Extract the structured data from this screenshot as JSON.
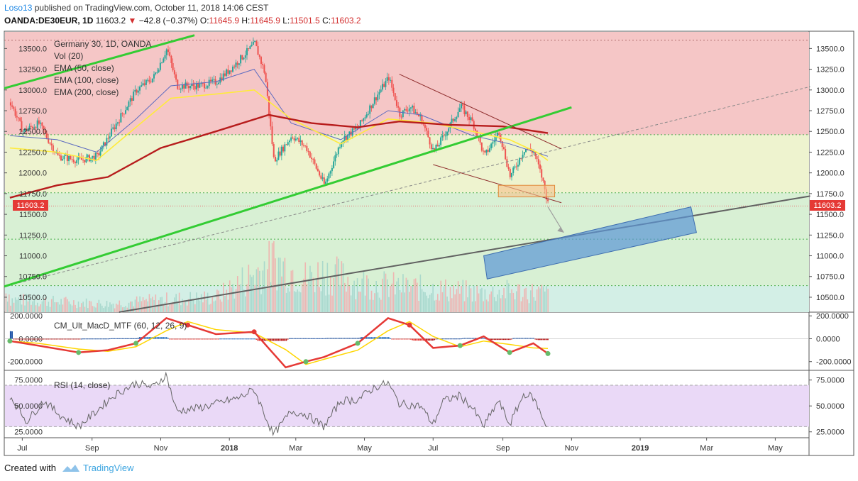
{
  "header": {
    "author": "Loso13",
    "published_text": "published on TradingView.com, October 11, 2018 14:06 CEST",
    "symbol": "OANDA:DE30EUR, 1D",
    "last": "11603.2",
    "change": "−42.8 (−0.37%)",
    "o_label": "O:",
    "o_value": "11645.9",
    "h_label": "H:",
    "h_value": "11645.9",
    "l_label": "L:",
    "l_value": "11501.5",
    "c_label": "C:",
    "c_value": "11603.2"
  },
  "legend": {
    "title": "Germany 30, 1D, OANDA",
    "vol": "Vol (20)",
    "ema50": "EMA (50, close)",
    "ema100": "EMA (100, close)",
    "ema200": "EMA (200, close)"
  },
  "macd_label": "CM_Ult_MacD_MTF (60, 12, 26, 9)",
  "rsi_label": "RSI (14, close)",
  "price_tag": "11603.2",
  "footer": {
    "created": "Created with",
    "brand": "TradingView"
  },
  "colors": {
    "up": "#26a69a",
    "down": "#ef5350",
    "ema50": "#ffeb3b",
    "ema100": "#5c6bc0",
    "ema200": "#b71c1c",
    "green_trend": "#33cc33",
    "gray_trend": "#616161",
    "zone_red": "#f5c6c6",
    "zone_yellow": "#eef3cf",
    "zone_green": "#d8f0d4",
    "zone_teal": "#d3efe6",
    "rsi_band": "#ead9f7",
    "box_blue": "#5b95d6",
    "box_orange": "#f7c18a"
  },
  "chart_data": [
    {
      "type": "candlestick",
      "title": "Germany 30, 1D, OANDA",
      "x_ticks": [
        "Jul",
        "Sep",
        "Nov",
        "2018",
        "Mar",
        "May",
        "Jul",
        "Sep",
        "Nov",
        "2019",
        "Mar",
        "May"
      ],
      "y_ticks": [
        10500,
        10750,
        11000,
        11250,
        11500,
        11750,
        12000,
        12250,
        12500,
        12750,
        13000,
        13250,
        13500
      ],
      "ylim": [
        10320,
        13700
      ],
      "x_range_months": [
        "2017-06-15",
        "2019-05-31"
      ],
      "last_price": 11603.2,
      "close_series": [
        [
          "2017-06-20",
          12850
        ],
        [
          "2017-07-01",
          12500
        ],
        [
          "2017-07-15",
          12600
        ],
        [
          "2017-08-01",
          12200
        ],
        [
          "2017-08-20",
          12150
        ],
        [
          "2017-09-05",
          12200
        ],
        [
          "2017-09-20",
          12550
        ],
        [
          "2017-10-10",
          13000
        ],
        [
          "2017-10-25",
          13150
        ],
        [
          "2017-11-06",
          13500
        ],
        [
          "2017-11-15",
          13050
        ],
        [
          "2017-11-25",
          13050
        ],
        [
          "2017-12-05",
          13050
        ],
        [
          "2017-12-20",
          13100
        ],
        [
          "2018-01-05",
          13300
        ],
        [
          "2018-01-23",
          13560
        ],
        [
          "2018-02-01",
          13200
        ],
        [
          "2018-02-09",
          12150
        ],
        [
          "2018-02-25",
          12450
        ],
        [
          "2018-03-10",
          12300
        ],
        [
          "2018-03-26",
          11850
        ],
        [
          "2018-04-10",
          12400
        ],
        [
          "2018-04-25",
          12550
        ],
        [
          "2018-05-10",
          12900
        ],
        [
          "2018-05-22",
          13150
        ],
        [
          "2018-06-01",
          12700
        ],
        [
          "2018-06-10",
          12800
        ],
        [
          "2018-06-20",
          12650
        ],
        [
          "2018-07-01",
          12250
        ],
        [
          "2018-07-10",
          12450
        ],
        [
          "2018-07-25",
          12800
        ],
        [
          "2018-08-05",
          12600
        ],
        [
          "2018-08-15",
          12200
        ],
        [
          "2018-08-28",
          12500
        ],
        [
          "2018-09-07",
          11950
        ],
        [
          "2018-09-20",
          12300
        ],
        [
          "2018-09-28",
          12250
        ],
        [
          "2018-10-05",
          11950
        ],
        [
          "2018-10-11",
          11603.2
        ]
      ],
      "ema50": [
        [
          "2017-06-20",
          12300
        ],
        [
          "2017-08-01",
          12250
        ],
        [
          "2017-09-05",
          12150
        ],
        [
          "2017-10-10",
          12550
        ],
        [
          "2017-11-10",
          12900
        ],
        [
          "2017-12-20",
          12950
        ],
        [
          "2018-01-23",
          13000
        ],
        [
          "2018-02-25",
          12650
        ],
        [
          "2018-04-10",
          12350
        ],
        [
          "2018-05-22",
          12650
        ],
        [
          "2018-07-01",
          12600
        ],
        [
          "2018-08-05",
          12500
        ],
        [
          "2018-09-07",
          12400
        ],
        [
          "2018-10-01",
          12250
        ],
        [
          "2018-10-11",
          12150
        ]
      ],
      "ema100": [
        [
          "2017-06-20",
          12450
        ],
        [
          "2017-08-01",
          12400
        ],
        [
          "2017-09-05",
          12250
        ],
        [
          "2017-10-10",
          12650
        ],
        [
          "2017-11-10",
          13050
        ],
        [
          "2017-12-20",
          13100
        ],
        [
          "2018-01-23",
          13250
        ],
        [
          "2018-02-25",
          12600
        ],
        [
          "2018-04-10",
          12400
        ],
        [
          "2018-05-22",
          12750
        ],
        [
          "2018-06-20",
          12700
        ],
        [
          "2018-08-05",
          12450
        ],
        [
          "2018-09-07",
          12350
        ],
        [
          "2018-10-11",
          12200
        ]
      ],
      "ema200": [
        [
          "2017-06-20",
          11700
        ],
        [
          "2017-08-01",
          11850
        ],
        [
          "2017-09-15",
          11950
        ],
        [
          "2017-11-01",
          12300
        ],
        [
          "2017-12-20",
          12500
        ],
        [
          "2018-02-05",
          12700
        ],
        [
          "2018-03-15",
          12600
        ],
        [
          "2018-04-25",
          12550
        ],
        [
          "2018-06-01",
          12620
        ],
        [
          "2018-07-15",
          12580
        ],
        [
          "2018-09-01",
          12560
        ],
        [
          "2018-10-11",
          12480
        ]
      ],
      "volume": {
        "ylim": [
          0,
          160
        ],
        "points": [
          [
            "2017-06-20",
            30
          ],
          [
            "2017-08-01",
            25
          ],
          [
            "2017-09-15",
            20
          ],
          [
            "2017-11-01",
            30
          ],
          [
            "2017-12-20",
            35
          ],
          [
            "2018-02-09",
            120
          ],
          [
            "2018-03-10",
            80
          ],
          [
            "2018-03-26",
            95
          ],
          [
            "2018-04-25",
            70
          ],
          [
            "2018-06-01",
            60
          ],
          [
            "2018-07-01",
            55
          ],
          [
            "2018-08-15",
            45
          ],
          [
            "2018-09-07",
            50
          ],
          [
            "2018-10-11",
            45
          ]
        ]
      },
      "annotations": {
        "horizontal_levels": [
          13600,
          12460,
          11760,
          11600,
          11200,
          10640
        ],
        "zones": [
          {
            "from": 12460,
            "to": 13700,
            "color": "red"
          },
          {
            "from": 11760,
            "to": 12460,
            "color": "yellow"
          },
          {
            "from": 10640,
            "to": 11760,
            "color": "green"
          },
          {
            "from": 10320,
            "to": 10640,
            "color": "teal"
          }
        ],
        "green_trendline_upper": [
          [
            "2017-06-15",
            13020
          ],
          [
            "2017-12-01",
            13660
          ]
        ],
        "green_trendline_lower": [
          [
            "2017-06-15",
            10630
          ],
          [
            "2018-11-01",
            12790
          ]
        ],
        "dashed_trendline": [
          [
            "2017-06-15",
            10630
          ],
          [
            "2019-06-01",
            13040
          ]
        ],
        "gray_trendline": [
          [
            "2017-09-25",
            10320
          ],
          [
            "2019-06-01",
            11720
          ]
        ],
        "maroon_upper": [
          [
            "2018-06-01",
            13190
          ],
          [
            "2018-10-23",
            12290
          ]
        ],
        "maroon_lower": [
          [
            "2018-07-01",
            12100
          ],
          [
            "2018-10-23",
            11640
          ]
        ],
        "orange_box": {
          "x0": "2018-08-28",
          "x1": "2018-10-17",
          "y0": 11710,
          "y1": 11850
        },
        "blue_box": [
          [
            "2018-08-15",
            11000
          ],
          [
            "2019-02-15",
            11590
          ],
          [
            "2019-02-20",
            11280
          ],
          [
            "2018-08-18",
            10720
          ]
        ],
        "arrow": [
          [
            "2018-10-11",
            11590
          ],
          [
            "2018-10-25",
            11280
          ]
        ]
      }
    },
    {
      "type": "bar",
      "title": "CM_Ult_MacD_MTF (60, 12, 26, 9)",
      "y_ticks": [
        "200.0000",
        "0.0000",
        "-200.0000"
      ],
      "ylim": [
        -270,
        220
      ],
      "macd_line": [
        [
          "2017-06-20",
          -20
        ],
        [
          "2017-07-15",
          -60
        ],
        [
          "2017-08-20",
          -120
        ],
        [
          "2017-09-15",
          -100
        ],
        [
          "2017-10-10",
          -40
        ],
        [
          "2017-11-06",
          180
        ],
        [
          "2017-11-25",
          120
        ],
        [
          "2017-12-20",
          40
        ],
        [
          "2018-01-23",
          60
        ],
        [
          "2018-02-20",
          -250
        ],
        [
          "2018-03-10",
          -200
        ],
        [
          "2018-03-26",
          -160
        ],
        [
          "2018-04-25",
          -40
        ],
        [
          "2018-05-22",
          180
        ],
        [
          "2018-06-10",
          120
        ],
        [
          "2018-07-01",
          -80
        ],
        [
          "2018-07-25",
          -60
        ],
        [
          "2018-08-15",
          20
        ],
        [
          "2018-09-07",
          -120
        ],
        [
          "2018-09-28",
          -40
        ],
        [
          "2018-10-11",
          -130
        ]
      ]
    },
    {
      "type": "line",
      "title": "RSI (14, close)",
      "y_ticks": [
        "75.0000",
        "50.0000",
        "25.0000"
      ],
      "ylim": [
        20,
        83
      ],
      "band": [
        30,
        70
      ],
      "values": [
        [
          "2017-06-20",
          60
        ],
        [
          "2017-07-05",
          35
        ],
        [
          "2017-07-20",
          55
        ],
        [
          "2017-08-05",
          40
        ],
        [
          "2017-08-20",
          30
        ],
        [
          "2017-09-05",
          45
        ],
        [
          "2017-09-20",
          60
        ],
        [
          "2017-10-10",
          72
        ],
        [
          "2017-10-25",
          68
        ],
        [
          "2017-11-06",
          80
        ],
        [
          "2017-11-15",
          45
        ],
        [
          "2017-12-05",
          48
        ],
        [
          "2017-12-20",
          52
        ],
        [
          "2018-01-10",
          58
        ],
        [
          "2018-01-23",
          66
        ],
        [
          "2018-02-09",
          22
        ],
        [
          "2018-02-25",
          45
        ],
        [
          "2018-03-10",
          42
        ],
        [
          "2018-03-26",
          30
        ],
        [
          "2018-04-10",
          55
        ],
        [
          "2018-04-25",
          56
        ],
        [
          "2018-05-10",
          68
        ],
        [
          "2018-05-22",
          72
        ],
        [
          "2018-06-01",
          52
        ],
        [
          "2018-06-20",
          50
        ],
        [
          "2018-07-01",
          32
        ],
        [
          "2018-07-10",
          55
        ],
        [
          "2018-07-25",
          60
        ],
        [
          "2018-08-05",
          48
        ],
        [
          "2018-08-15",
          30
        ],
        [
          "2018-08-28",
          55
        ],
        [
          "2018-09-07",
          32
        ],
        [
          "2018-09-20",
          62
        ],
        [
          "2018-09-28",
          58
        ],
        [
          "2018-10-05",
          42
        ],
        [
          "2018-10-11",
          28
        ]
      ]
    }
  ]
}
